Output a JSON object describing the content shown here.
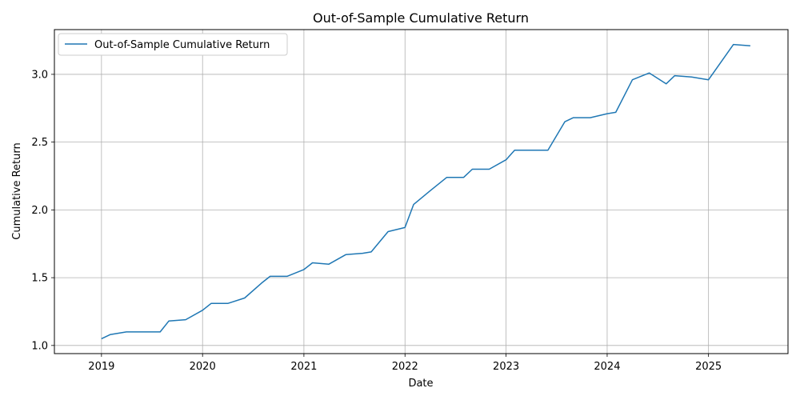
{
  "chart_data": {
    "type": "line",
    "title": "Out-of-Sample Cumulative Return",
    "xlabel": "Date",
    "ylabel": "Cumulative Return",
    "x_ticks": [
      "2019",
      "2020",
      "2021",
      "2022",
      "2023",
      "2024",
      "2025"
    ],
    "y_ticks": [
      "1.0",
      "1.5",
      "2.0",
      "2.5",
      "3.0"
    ],
    "xlim": [
      "2018-07-15",
      "2025-10-15"
    ],
    "ylim": [
      0.94,
      3.33
    ],
    "grid": true,
    "legend_position": "top-left",
    "series": [
      {
        "name": "Out-of-Sample Cumulative Return",
        "color": "#1f77b4",
        "x": [
          "2019-01-01",
          "2019-02-01",
          "2019-04-01",
          "2019-06-01",
          "2019-08-01",
          "2019-09-01",
          "2019-11-01",
          "2020-01-01",
          "2020-02-01",
          "2020-04-01",
          "2020-06-01",
          "2020-08-01",
          "2020-09-01",
          "2020-11-01",
          "2021-01-01",
          "2021-02-01",
          "2021-04-01",
          "2021-06-01",
          "2021-08-01",
          "2021-09-01",
          "2021-11-01",
          "2022-01-01",
          "2022-02-01",
          "2022-04-01",
          "2022-06-01",
          "2022-08-01",
          "2022-09-01",
          "2022-11-01",
          "2023-01-01",
          "2023-02-01",
          "2023-04-01",
          "2023-06-01",
          "2023-08-01",
          "2023-09-01",
          "2023-11-01",
          "2024-01-01",
          "2024-02-01",
          "2024-04-01",
          "2024-06-01",
          "2024-08-01",
          "2024-09-01",
          "2024-11-01",
          "2025-01-01",
          "2025-04-01",
          "2025-06-01"
        ],
        "y": [
          1.05,
          1.08,
          1.1,
          1.1,
          1.1,
          1.18,
          1.19,
          1.26,
          1.31,
          1.31,
          1.35,
          1.46,
          1.51,
          1.51,
          1.56,
          1.61,
          1.6,
          1.67,
          1.68,
          1.69,
          1.84,
          1.87,
          2.04,
          2.14,
          2.24,
          2.24,
          2.3,
          2.3,
          2.37,
          2.44,
          2.44,
          2.44,
          2.65,
          2.68,
          2.68,
          2.71,
          2.72,
          2.96,
          3.01,
          2.93,
          2.99,
          2.98,
          2.96,
          3.22,
          3.21
        ]
      }
    ]
  }
}
